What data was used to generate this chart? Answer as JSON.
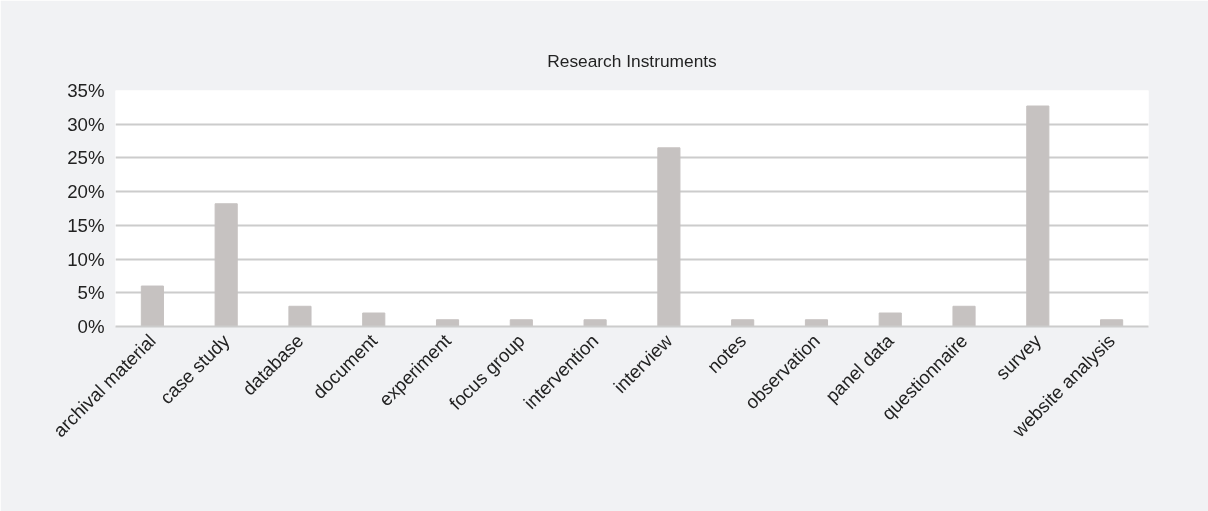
{
  "chart_data": {
    "type": "bar",
    "title": "Research Instruments",
    "categories": [
      "archival material",
      "case study",
      "database",
      "document",
      "experiment",
      "focus group",
      "intervention",
      "interview",
      "notes",
      "observation",
      "panel data",
      "questionnaire",
      "survey",
      "website analysis"
    ],
    "values": [
      6,
      18.2,
      3,
      2,
      1,
      1,
      1,
      26.5,
      1,
      1,
      2,
      3,
      32.7,
      1
    ],
    "color": "#c6c2c1",
    "ylim": [
      0,
      35
    ],
    "yticks": [
      {
        "value": 0,
        "label": "0%"
      },
      {
        "value": 5,
        "label": "5%"
      },
      {
        "value": 10,
        "label": "10%"
      },
      {
        "value": 15,
        "label": "15%"
      },
      {
        "value": 20,
        "label": "20%"
      },
      {
        "value": 25,
        "label": "25%"
      },
      {
        "value": 30,
        "label": "30%"
      },
      {
        "value": 35,
        "label": "35%"
      }
    ],
    "grid": "y"
  }
}
